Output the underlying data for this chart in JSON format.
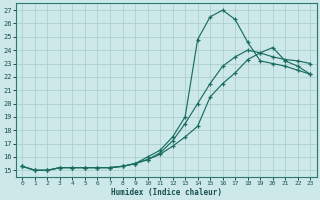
{
  "xlabel": "Humidex (Indice chaleur)",
  "bg_color": "#cde8e8",
  "grid_color": "#aed0d0",
  "line_color": "#1a6e60",
  "xlim": [
    -0.5,
    23.5
  ],
  "ylim": [
    14.5,
    27.5
  ],
  "xticks": [
    0,
    1,
    2,
    3,
    4,
    5,
    6,
    7,
    8,
    9,
    10,
    11,
    12,
    13,
    14,
    15,
    16,
    17,
    18,
    19,
    20,
    21,
    22,
    23
  ],
  "yticks": [
    15,
    16,
    17,
    18,
    19,
    20,
    21,
    22,
    23,
    24,
    25,
    26,
    27
  ],
  "line1_x": [
    0,
    1,
    2,
    3,
    4,
    5,
    6,
    7,
    8,
    9,
    10,
    11,
    12,
    13,
    14,
    15,
    16,
    17,
    18,
    19,
    20,
    21,
    22,
    23
  ],
  "line1_y": [
    15.3,
    15.0,
    15.0,
    15.2,
    15.2,
    15.2,
    15.2,
    15.2,
    15.3,
    15.5,
    16.0,
    16.5,
    17.5,
    19.0,
    24.8,
    26.5,
    27.0,
    26.3,
    24.6,
    23.2,
    23.0,
    22.8,
    22.5,
    22.2
  ],
  "line2_x": [
    0,
    1,
    2,
    3,
    4,
    5,
    6,
    7,
    8,
    9,
    10,
    11,
    12,
    13,
    14,
    15,
    16,
    17,
    18,
    19,
    20,
    21,
    22,
    23
  ],
  "line2_y": [
    15.3,
    15.0,
    15.0,
    15.2,
    15.2,
    15.2,
    15.2,
    15.2,
    15.3,
    15.5,
    15.8,
    16.2,
    16.8,
    17.5,
    18.3,
    20.5,
    21.5,
    22.3,
    23.3,
    23.8,
    24.2,
    23.2,
    22.8,
    22.2
  ],
  "line3_x": [
    0,
    1,
    2,
    3,
    4,
    5,
    6,
    7,
    8,
    9,
    10,
    11,
    12,
    13,
    14,
    15,
    16,
    17,
    18,
    19,
    20,
    21,
    22,
    23
  ],
  "line3_y": [
    15.3,
    15.0,
    15.0,
    15.2,
    15.2,
    15.2,
    15.2,
    15.2,
    15.3,
    15.5,
    15.8,
    16.3,
    17.2,
    18.5,
    20.0,
    21.5,
    22.8,
    23.5,
    24.0,
    23.8,
    23.5,
    23.3,
    23.2,
    23.0
  ]
}
